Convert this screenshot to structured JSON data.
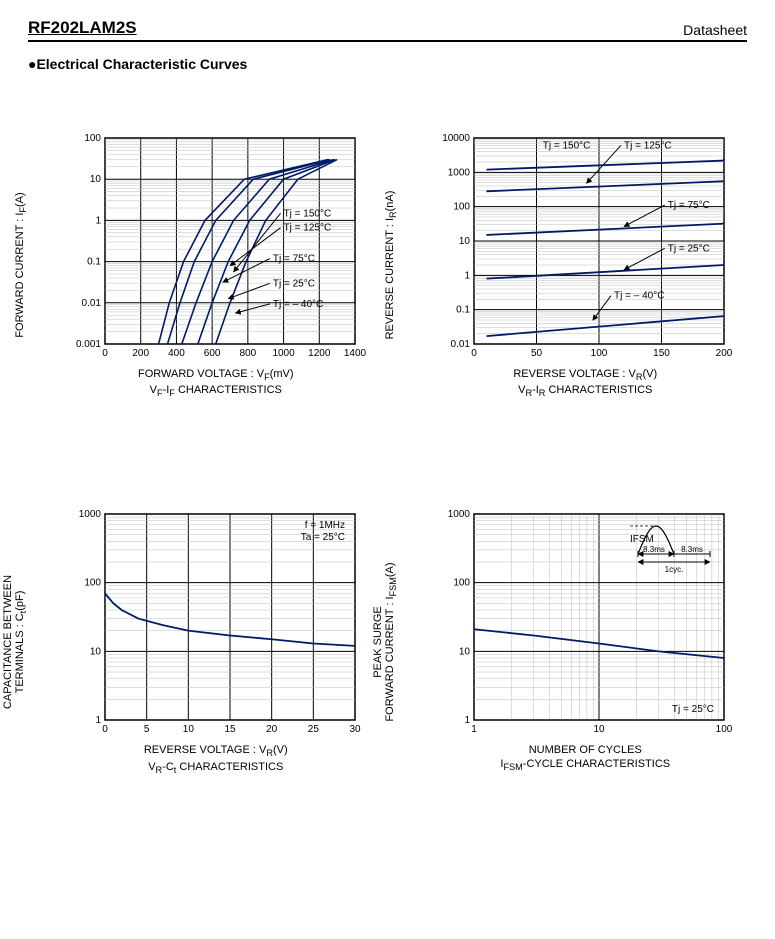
{
  "header": {
    "part_number": "RF202LAM2S",
    "doc_label": "Datasheet"
  },
  "section_title": "●Electrical Characteristic Curves",
  "charts": [
    {
      "id": "vf-if",
      "type": "line",
      "ylabel": "FORWARD CURRENT : Iₓ(A)",
      "ylabel_html": "FORWARD CURRENT : I<sub>F</sub>(A)",
      "xlabel_html": "FORWARD VOLTAGE : V<sub>F</sub>(mV)",
      "subtitle_html": "V<sub>F</sub>-I<sub>F</sub> CHARACTERISTICS",
      "x": {
        "type": "linear",
        "min": 0,
        "max": 1400,
        "ticks": [
          0,
          200,
          400,
          600,
          800,
          1000,
          1200,
          1400
        ]
      },
      "y": {
        "type": "log",
        "min": 0.001,
        "max": 100,
        "decades": [
          0.001,
          0.01,
          0.1,
          1,
          10,
          100
        ],
        "labels": [
          "0.001",
          "0.01",
          "0.1",
          "1",
          "10",
          "100"
        ]
      },
      "line_color": "#001a66",
      "line_width": 1.6,
      "series": [
        {
          "label": "Tj = 150°C",
          "pts": [
            [
              300,
              0.001
            ],
            [
              360,
              0.01
            ],
            [
              440,
              0.1
            ],
            [
              560,
              1
            ],
            [
              780,
              10
            ],
            [
              1250,
              30
            ]
          ]
        },
        {
          "label": "Tj = 125°C",
          "pts": [
            [
              350,
              0.001
            ],
            [
              420,
              0.01
            ],
            [
              500,
              0.1
            ],
            [
              620,
              1
            ],
            [
              830,
              10
            ],
            [
              1260,
              30
            ]
          ]
        },
        {
          "label": "Tj = 75°C",
          "pts": [
            [
              430,
              0.001
            ],
            [
              510,
              0.01
            ],
            [
              600,
              0.1
            ],
            [
              720,
              1
            ],
            [
              920,
              10
            ],
            [
              1280,
              30
            ]
          ]
        },
        {
          "label": "Tj = 25°C",
          "pts": [
            [
              520,
              0.001
            ],
            [
              600,
              0.01
            ],
            [
              690,
              0.1
            ],
            [
              810,
              1
            ],
            [
              1000,
              10
            ],
            [
              1290,
              30
            ]
          ]
        },
        {
          "label": "Tj = – 40°C",
          "pts": [
            [
              620,
              0.001
            ],
            [
              700,
              0.01
            ],
            [
              790,
              0.1
            ],
            [
              900,
              1
            ],
            [
              1080,
              10
            ],
            [
              1300,
              30
            ]
          ]
        }
      ],
      "annotations": [
        {
          "text": "Tj = 150°C",
          "x": 1000,
          "yf": 0.62,
          "ax": 720,
          "ayf": 0.35
        },
        {
          "text": "Tj = 125°C",
          "x": 1000,
          "yf": 0.55,
          "ax": 700,
          "ayf": 0.38
        },
        {
          "text": "Tj = 75°C",
          "x": 940,
          "yf": 0.4,
          "ax": 660,
          "ayf": 0.3
        },
        {
          "text": "Tj = 25°C",
          "x": 940,
          "yf": 0.28,
          "ax": 690,
          "ayf": 0.22
        },
        {
          "text": "Tj = – 40°C",
          "x": 940,
          "yf": 0.18,
          "ax": 730,
          "ayf": 0.15
        }
      ]
    },
    {
      "id": "vr-ir",
      "type": "line",
      "ylabel_html": "REVERSE CURRENT : I<sub>R</sub>(nA)",
      "xlabel_html": "REVERSE VOLTAGE : V<sub>R</sub>(V)",
      "subtitle_html": "V<sub>R</sub>-I<sub>R</sub> CHARACTERISTICS",
      "x": {
        "type": "linear",
        "min": 0,
        "max": 200,
        "ticks": [
          0,
          50,
          100,
          150,
          200
        ]
      },
      "y": {
        "type": "log",
        "min": 0.01,
        "max": 10000,
        "decades": [
          0.01,
          0.1,
          1,
          10,
          100,
          1000,
          10000
        ],
        "labels": [
          "0.01",
          "0.1",
          "1",
          "10",
          "100",
          "1000",
          "10000"
        ]
      },
      "line_color": "#001a66",
      "line_width": 1.8,
      "series": [
        {
          "label": "Tj = 150°C",
          "pts": [
            [
              10,
              1200
            ],
            [
              200,
              2200
            ]
          ]
        },
        {
          "label": "Tj = 125°C",
          "pts": [
            [
              10,
              280
            ],
            [
              200,
              550
            ]
          ]
        },
        {
          "label": "Tj = 75°C",
          "pts": [
            [
              10,
              15
            ],
            [
              200,
              32
            ]
          ]
        },
        {
          "label": "Tj = 25°C",
          "pts": [
            [
              10,
              0.8
            ],
            [
              200,
              2.0
            ]
          ]
        },
        {
          "label": "Tj = – 40°C",
          "pts": [
            [
              10,
              0.017
            ],
            [
              200,
              0.065
            ]
          ]
        }
      ],
      "annotations": [
        {
          "text": "Tj = 150°C",
          "x": 55,
          "yf": 0.95,
          "ax": 30,
          "ayf": 0.86,
          "noarrow": true
        },
        {
          "text": "Tj = 125°C",
          "x": 120,
          "yf": 0.95,
          "ax": 90,
          "ayf": 0.78
        },
        {
          "text": "Tj = 75°C",
          "x": 155,
          "yf": 0.66,
          "ax": 120,
          "ayf": 0.57
        },
        {
          "text": "Tj = 25°C",
          "x": 155,
          "yf": 0.45,
          "ax": 120,
          "ayf": 0.36
        },
        {
          "text": "Tj = – 40°C",
          "x": 112,
          "yf": 0.22,
          "ax": 95,
          "ayf": 0.115
        }
      ]
    },
    {
      "id": "vr-ct",
      "type": "line",
      "ylabel_html": "CAPACITANCE BETWEEN<br>TERMINALS : C<sub>t</sub>(pF)",
      "xlabel_html": "REVERSE VOLTAGE : V<sub>R</sub>(V)",
      "subtitle_html": "V<sub>R</sub>-C<sub>t</sub> CHARACTERISTICS",
      "x": {
        "type": "linear",
        "min": 0,
        "max": 30,
        "ticks": [
          0,
          5,
          10,
          15,
          20,
          25,
          30
        ]
      },
      "y": {
        "type": "log",
        "min": 1,
        "max": 1000,
        "decades": [
          1,
          10,
          100,
          1000
        ],
        "labels": [
          "1",
          "10",
          "100",
          "1000"
        ]
      },
      "line_color": "#001a66",
      "line_width": 1.8,
      "series": [
        {
          "label": "",
          "pts": [
            [
              0,
              70
            ],
            [
              1,
              50
            ],
            [
              2,
              40
            ],
            [
              4,
              30
            ],
            [
              7,
              24
            ],
            [
              10,
              20
            ],
            [
              15,
              17
            ],
            [
              20,
              15
            ],
            [
              25,
              13
            ],
            [
              30,
              12
            ]
          ]
        }
      ],
      "corner_text": [
        "f  = 1MHz",
        "Ta = 25°C"
      ]
    },
    {
      "id": "ifsm-cycle",
      "type": "line",
      "ylabel_html": "PEAK SURGE<br>FORWARD CURRENT : I<sub>FSM</sub>(A)",
      "xlabel_html": "NUMBER OF CYCLES",
      "subtitle_html": "I<sub>FSM</sub>-CYCLE CHARACTERISTICS",
      "x": {
        "type": "log",
        "min": 1,
        "max": 100,
        "decades": [
          1,
          10,
          100
        ],
        "labels": [
          "1",
          "10",
          "100"
        ]
      },
      "y": {
        "type": "log",
        "min": 1,
        "max": 1000,
        "decades": [
          1,
          10,
          100,
          1000
        ],
        "labels": [
          "1",
          "10",
          "100",
          "1000"
        ]
      },
      "line_color": "#001a66",
      "line_width": 1.8,
      "series": [
        {
          "label": "",
          "pts": [
            [
              1,
              21
            ],
            [
              3,
              17
            ],
            [
              10,
              13
            ],
            [
              30,
              10
            ],
            [
              100,
              8
            ]
          ]
        }
      ],
      "corner_text_br": "Tj = 25°C",
      "inset": {
        "ifsm_label": "IFSM",
        "t1": "8.3ms",
        "t2": "8.3ms",
        "cycle": "1cyc."
      }
    }
  ],
  "colors": {
    "bg": "#ffffff",
    "grid_major": "#000000",
    "grid_minor": "#bdbdbd",
    "line": "#001a66"
  }
}
